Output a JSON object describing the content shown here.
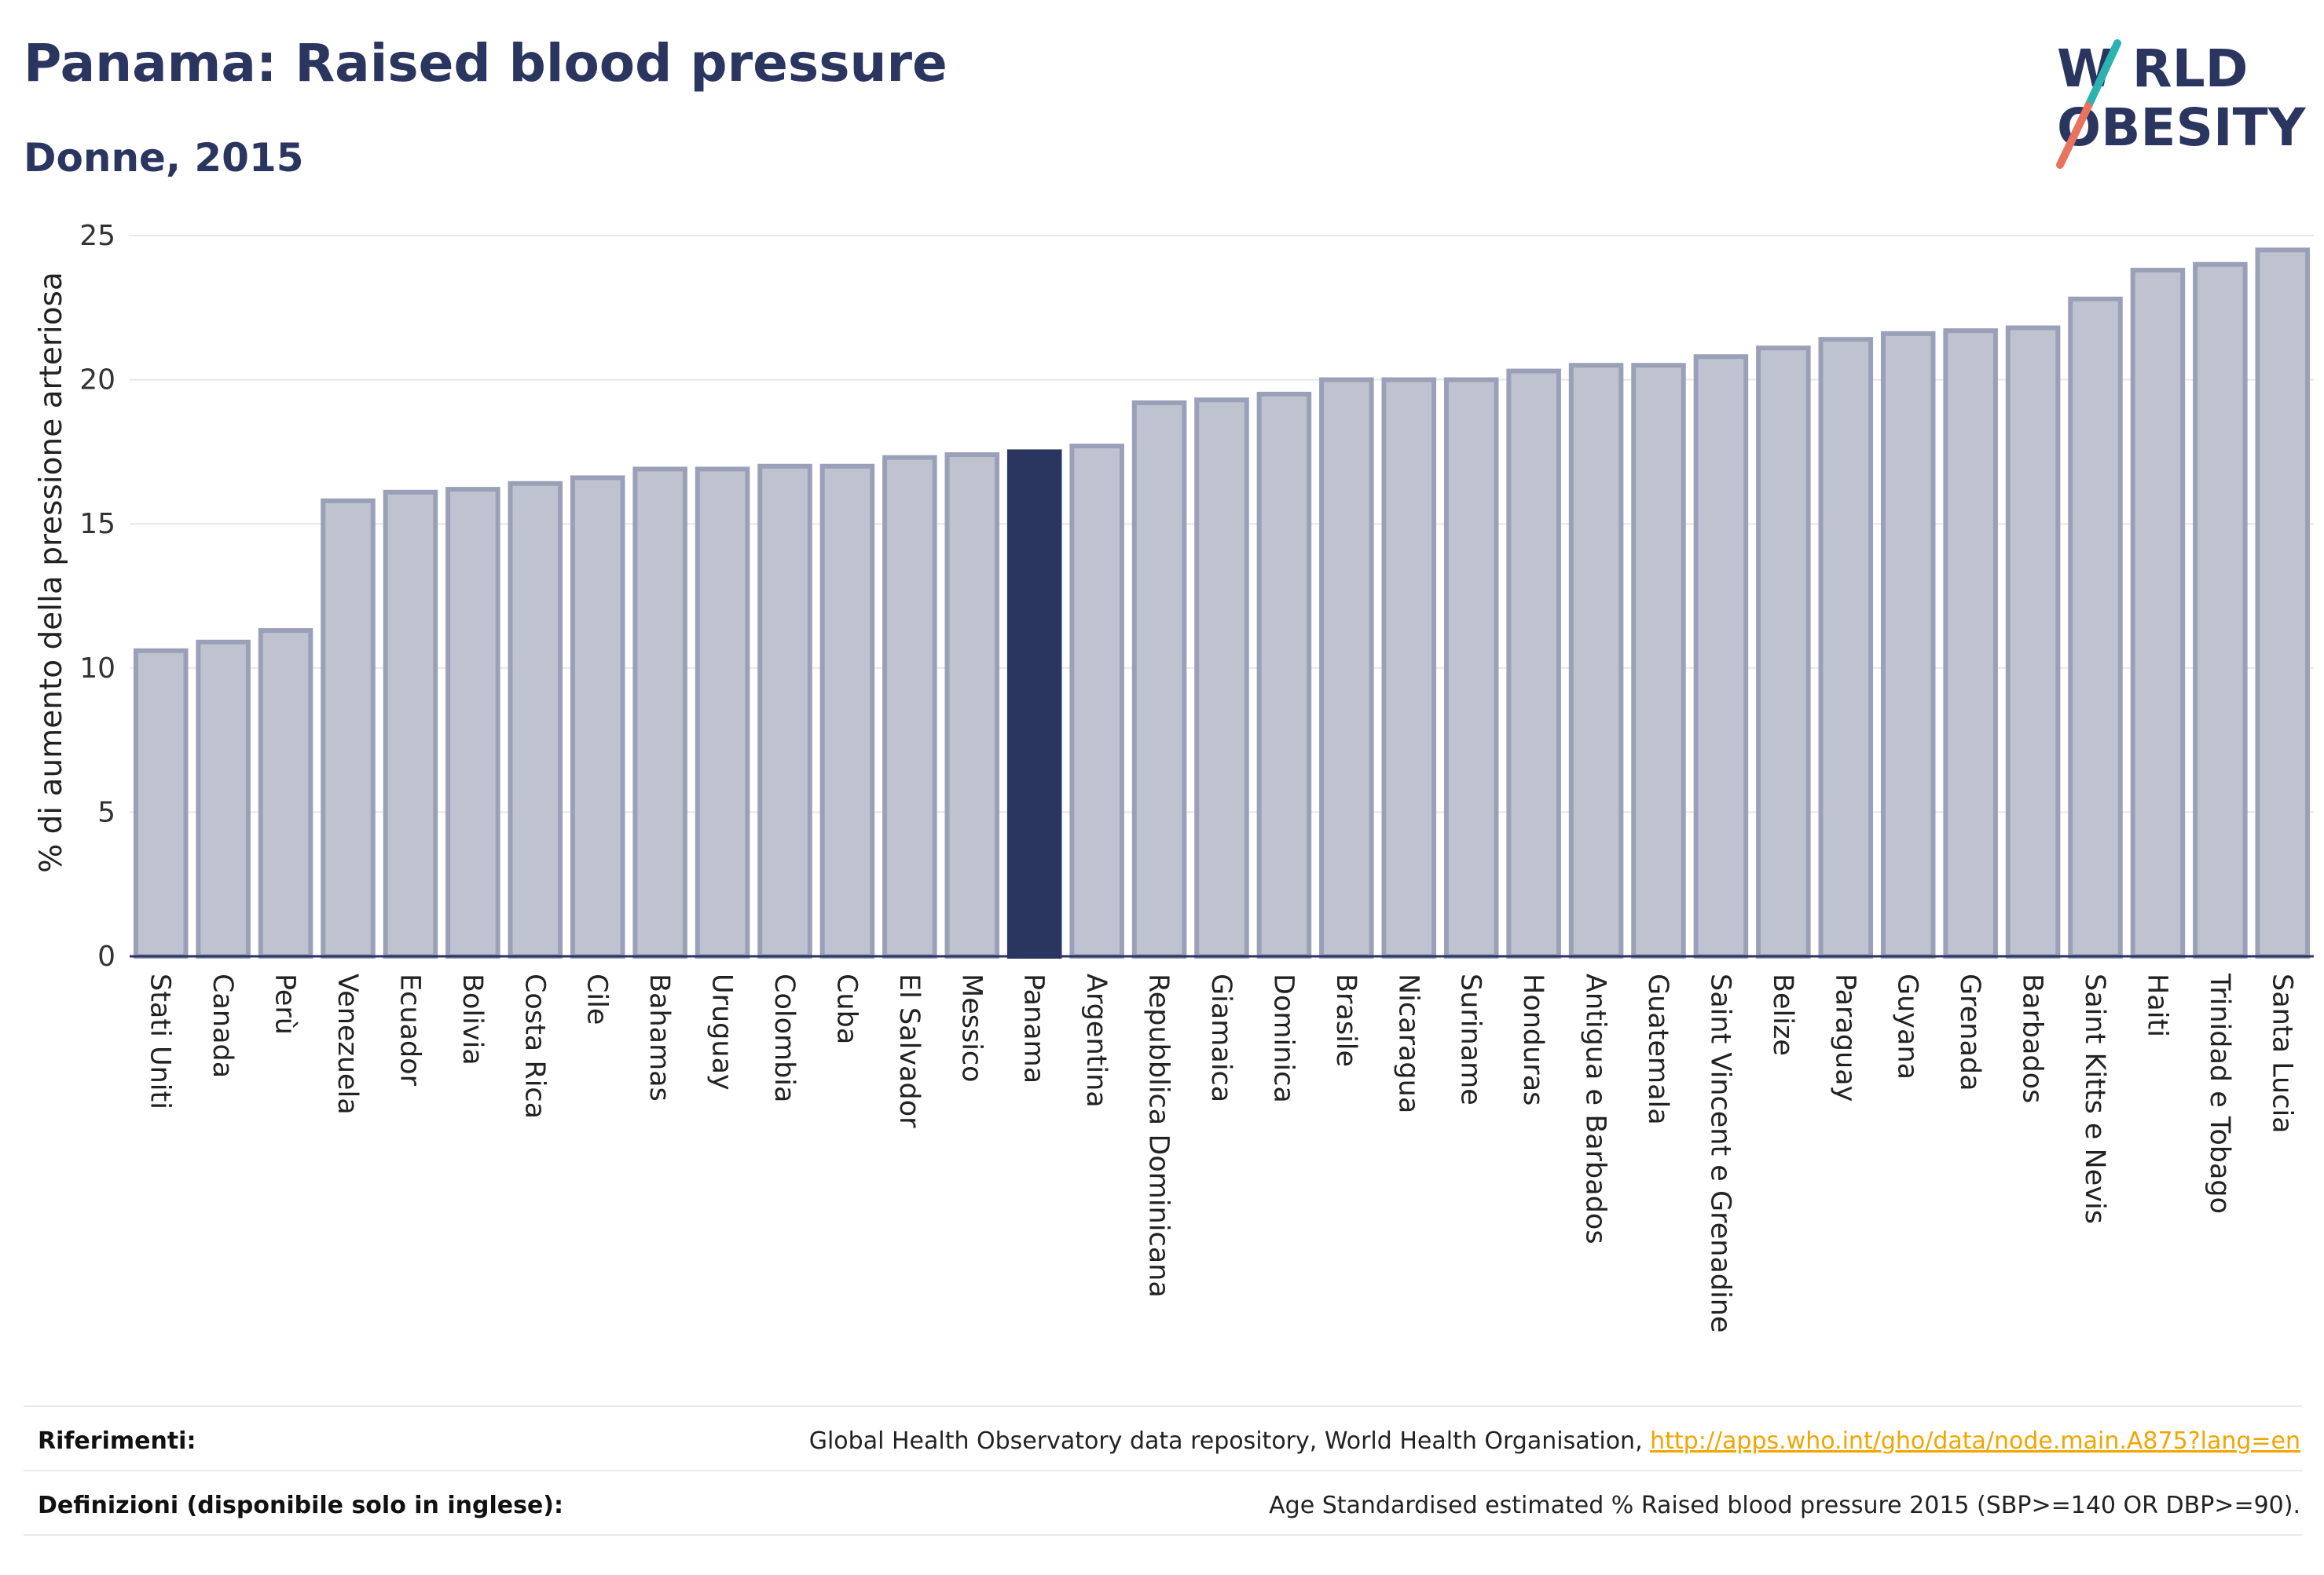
{
  "header": {
    "title": "Panama: Raised blood pressure",
    "subtitle": "Donne, 2015"
  },
  "logo": {
    "line1": "W RLD",
    "line2": "OBESITY",
    "colors": {
      "text": "#2a3560",
      "teal": "#2bb3b1",
      "coral": "#e8735f"
    }
  },
  "colors": {
    "bar_fill": "#bfc3d0",
    "bar_stroke": "#9aa0b8",
    "highlight": "#2a3560",
    "grid": "#e6e6ec",
    "baseline": "#2a3560"
  },
  "chart_data": {
    "type": "bar",
    "ylabel": "% di aumento della pressione arteriosa",
    "ylim": [
      0,
      25
    ],
    "yticks": [
      0,
      5,
      10,
      15,
      20,
      25
    ],
    "grid": true,
    "highlight": "Panama",
    "categories": [
      "Stati Uniti",
      "Canada",
      "Perù",
      "Venezuela",
      "Ecuador",
      "Bolivia",
      "Costa Rica",
      "Cile",
      "Bahamas",
      "Uruguay",
      "Colombia",
      "Cuba",
      "El Salvador",
      "Messico",
      "Panama",
      "Argentina",
      "Repubblica Dominicana",
      "Giamaica",
      "Dominica",
      "Brasile",
      "Nicaragua",
      "Suriname",
      "Honduras",
      "Antigua e Barbados",
      "Guatemala",
      "Saint Vincent e Grenadine",
      "Belize",
      "Paraguay",
      "Guyana",
      "Grenada",
      "Barbados",
      "Saint Kitts e Nevis",
      "Haiti",
      "Trinidad e Tobago",
      "Santa Lucia"
    ],
    "values": [
      10.6,
      10.9,
      11.3,
      15.8,
      16.1,
      16.2,
      16.4,
      16.6,
      16.9,
      16.9,
      17.0,
      17.0,
      17.3,
      17.4,
      17.5,
      17.7,
      19.2,
      19.3,
      19.5,
      20.0,
      20.0,
      20.0,
      20.3,
      20.5,
      20.5,
      20.8,
      21.1,
      21.4,
      21.6,
      21.7,
      21.8,
      22.8,
      23.8,
      24.0,
      24.5
    ]
  },
  "footer": {
    "references_label": "Riferimenti:",
    "references_text": "Global Health Observatory data repository, World Health Organisation, ",
    "references_link": "http://apps.who.int/gho/data/node.main.A875?lang=en",
    "definitions_label": "Definizioni (disponibile solo in inglese):",
    "definitions_text": "Age Standardised estimated % Raised blood pressure 2015 (SBP>=140 OR DBP>=90)."
  }
}
